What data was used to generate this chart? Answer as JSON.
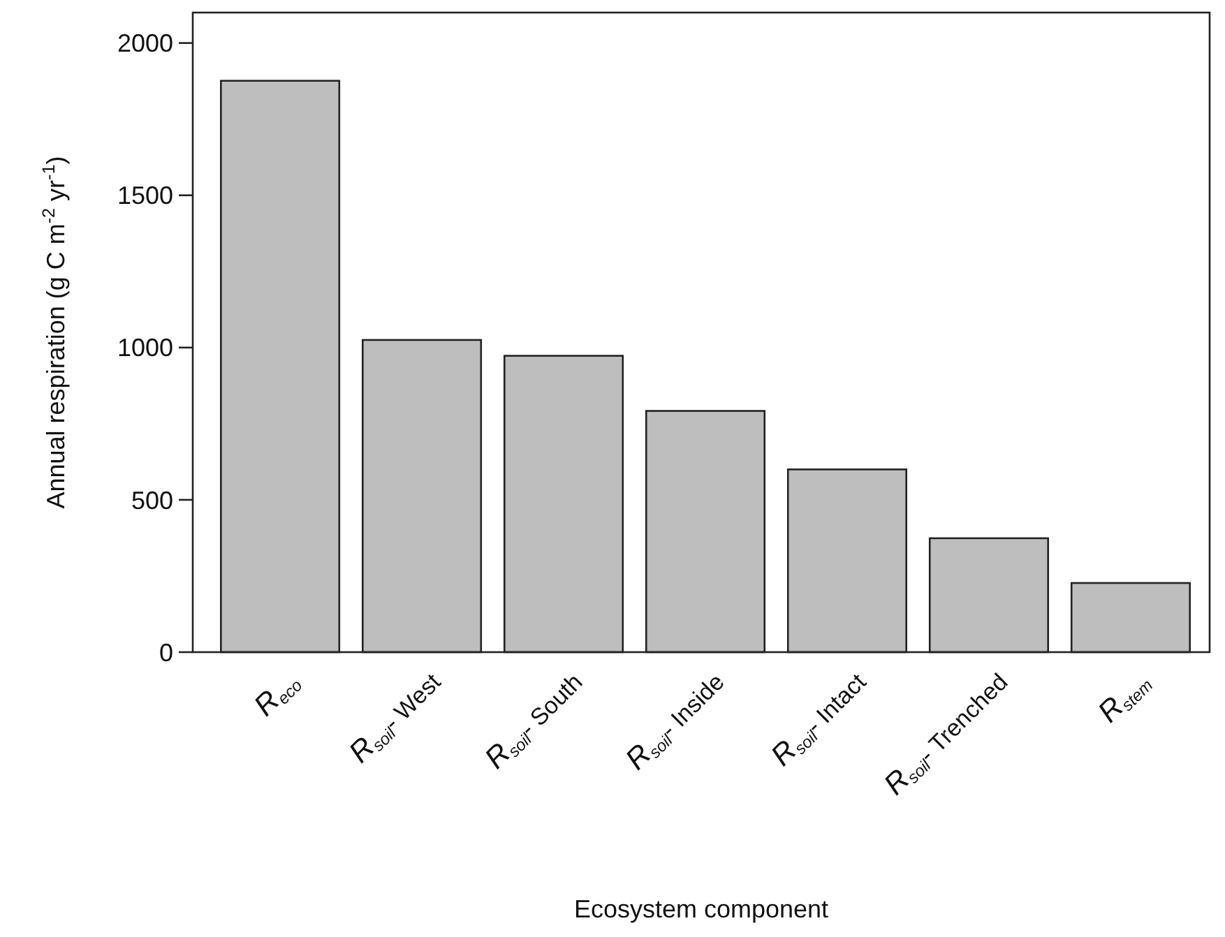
{
  "chart_data": {
    "type": "bar",
    "xlabel": "Ecosystem component",
    "ylabel": "Annual respiration (g C m$^{-2}$ yr$^{-1}$)",
    "categories": [
      "R$_{eco}$",
      "R$_{soil}$- West",
      "R$_{soil}$- South",
      "R$_{soil}$- Inside",
      "R$_{soil}$- Intact",
      "R$_{soil}$- Trenched",
      "R$_{stem}$"
    ],
    "values": [
      1876,
      1025,
      973,
      792,
      600,
      374,
      227
    ],
    "color": "#bebebe",
    "ylim": [
      0,
      2100
    ],
    "yticks": [
      0,
      500,
      1000,
      1500,
      2000
    ],
    "grid": false
  }
}
